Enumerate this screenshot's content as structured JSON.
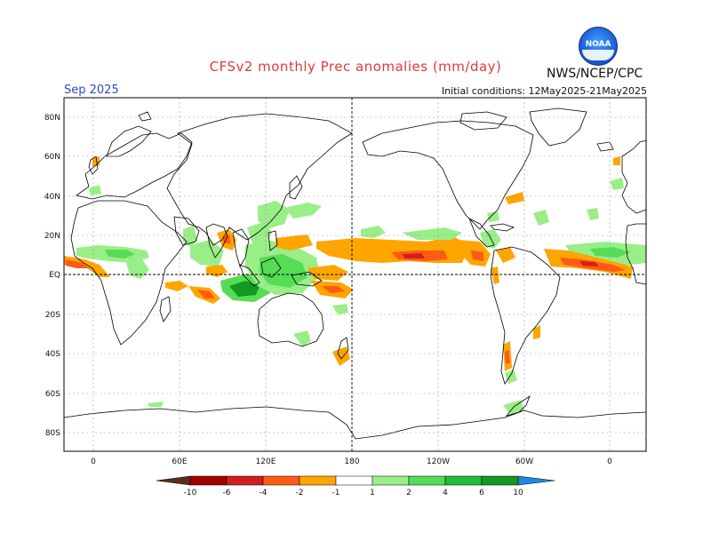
{
  "header": {
    "title": "CFSv2 monthly Prec anomalies (mm/day)",
    "agency": "NWS/NCEP/CPC",
    "month": "Sep 2025",
    "initial_conditions": "Initial conditions: 12May2025-21May2025",
    "logo_text": "NOAA"
  },
  "map": {
    "lat_labels": [
      "80N",
      "60N",
      "40N",
      "20N",
      "EQ",
      "20S",
      "40S",
      "60S",
      "80S"
    ],
    "lon_labels": [
      "0",
      "60E",
      "120E",
      "180",
      "120W",
      "60W",
      "0"
    ],
    "grid": true
  },
  "colorbar": {
    "ticks": [
      "-10",
      "-6",
      "-4",
      "-2",
      "-1",
      "1",
      "2",
      "4",
      "6",
      "10"
    ],
    "colors": {
      "lt_neg10": "#5a2d1e",
      "neg10_neg6": "#a30000",
      "neg6_neg4": "#d21e1e",
      "neg4_neg2": "#ff5a14",
      "neg2_neg1": "#ffa500",
      "neutral": "#ffffff",
      "pos1_pos2": "#99ee88",
      "pos2_pos4": "#55dd55",
      "pos4_pos6": "#22bb33",
      "pos6_pos10": "#119922",
      "gt_pos10": "#1e88e5"
    }
  }
}
